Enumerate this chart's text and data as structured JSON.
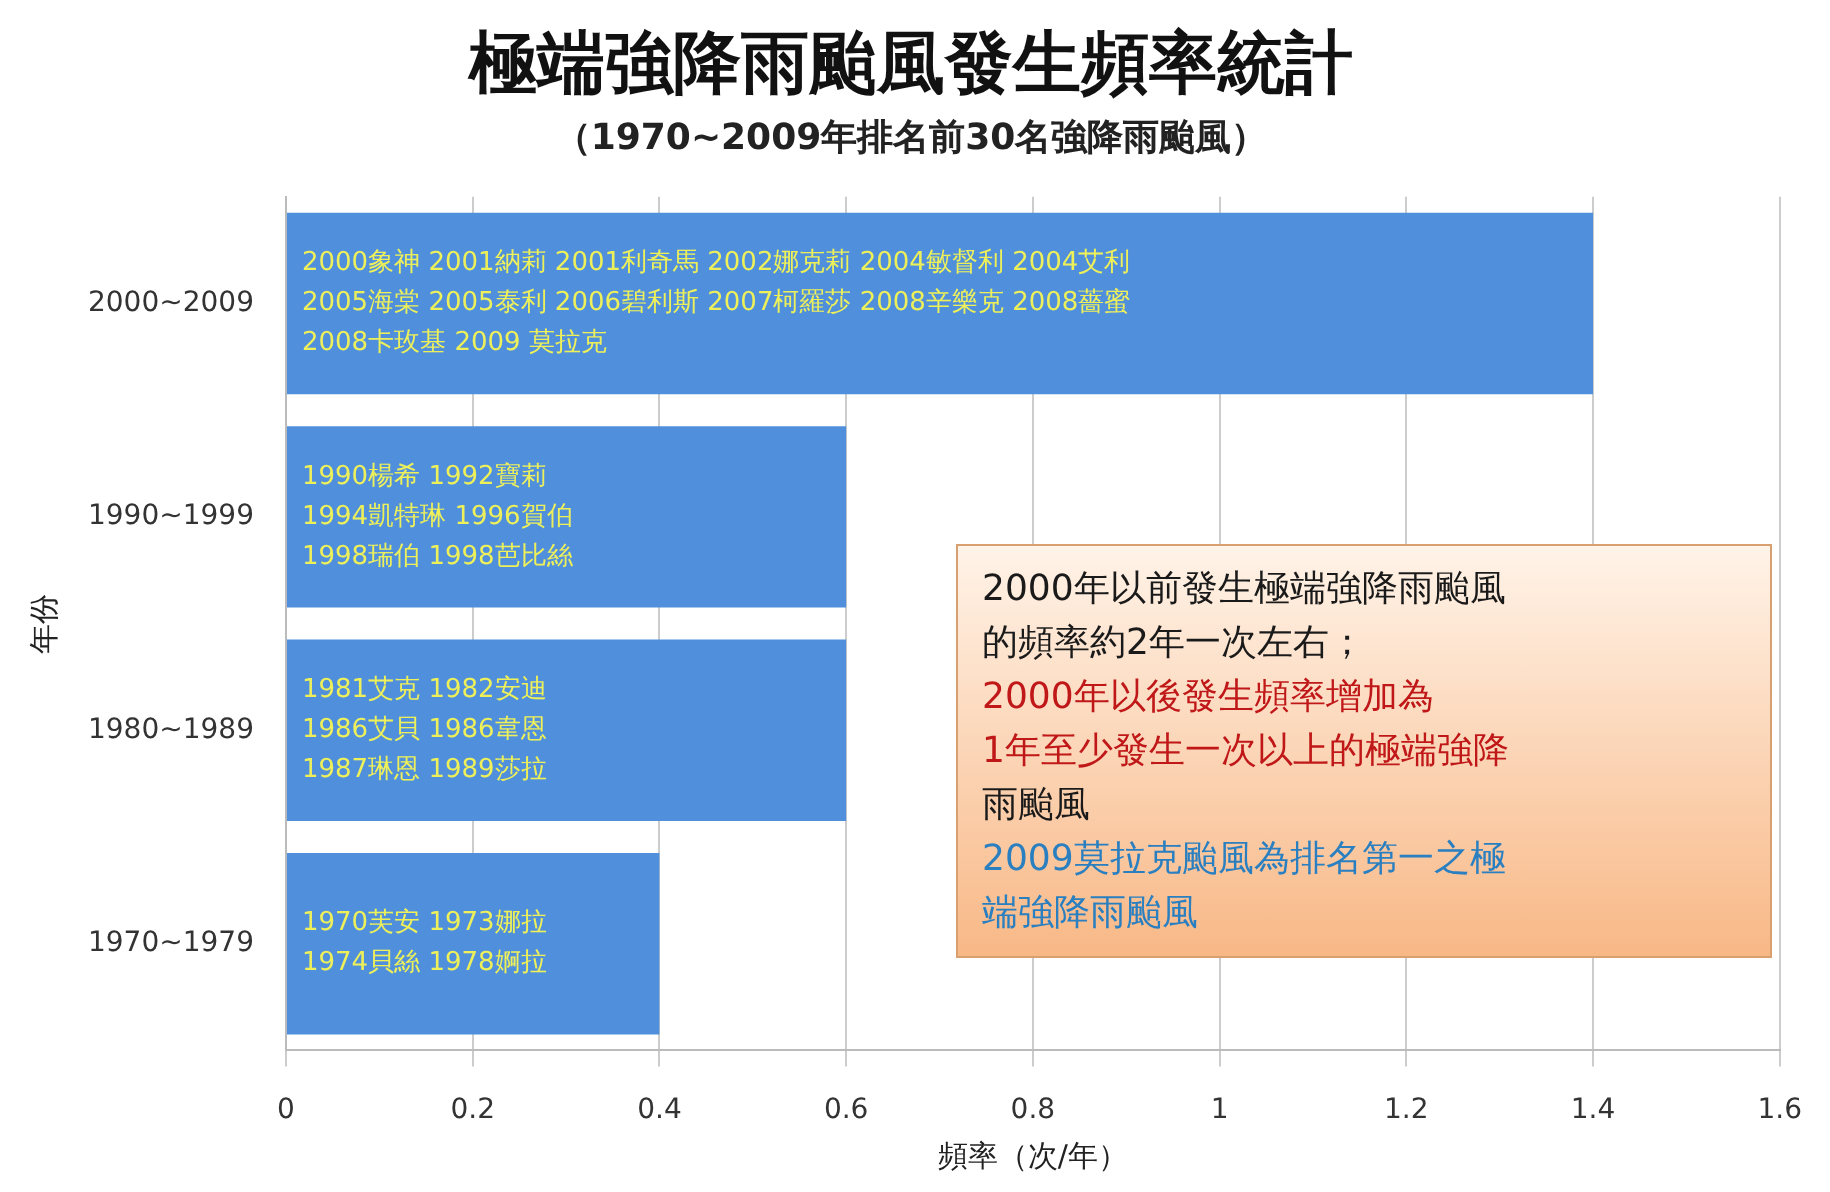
{
  "chart_data": {
    "type": "bar",
    "orientation": "horizontal",
    "title": "極端強降雨颱風發生頻率統計",
    "subtitle": "（1970~2009年排名前30名強降雨颱風）",
    "xlabel": "頻率（次/年）",
    "ylabel": "年份",
    "categories": [
      "2000~2009",
      "1990~1999",
      "1980~1989",
      "1970~1979"
    ],
    "values": [
      1.4,
      0.6,
      0.6,
      0.4
    ],
    "color": "#4f8fdc",
    "xlim": [
      0,
      1.6
    ],
    "xticks": [
      0,
      0.2,
      0.4,
      0.6,
      0.8,
      1,
      1.2,
      1.4,
      1.6
    ],
    "grid": "x",
    "legend": false,
    "annotations": [
      {
        "text": "2000象神 2001納莉 2001利奇馬 2002娜克莉 2004敏督利 2004艾利\n2005海棠 2005泰利 2006碧利斯 2007柯羅莎 2008辛樂克 2008薔蜜\n2008卡玫基 2009 莫拉克",
        "y": "2000~2009"
      },
      {
        "text": "1990楊希 1992寶莉\n1994凱特琳 1996賀伯\n1998瑞伯 1998芭比絲",
        "y": "1990~1999"
      },
      {
        "text": "1981艾克 1982安迪\n1986艾貝 1986韋恩\n1987琳恩 1989莎拉",
        "y": "1980~1989"
      },
      {
        "text": "1970芙安 1973娜拉\n1974貝絲 1978婀拉",
        "y": "1970~1979"
      },
      "2000年以前發生極端強降雨颱風",
      "的頻率約2年一次左右；",
      "2000年以後發生頻率增加為",
      "1年至少發生一次以上的極端強降",
      "雨颱風",
      "2009莫拉克颱風為排名第一之極",
      "端強降雨颱風"
    ]
  }
}
